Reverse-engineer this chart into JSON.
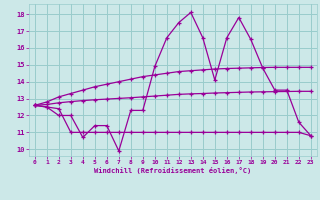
{
  "xlabel": "Windchill (Refroidissement éolien,°C)",
  "x": [
    0,
    1,
    2,
    3,
    4,
    5,
    6,
    7,
    8,
    9,
    10,
    11,
    12,
    13,
    14,
    15,
    16,
    17,
    18,
    19,
    20,
    21,
    22,
    23
  ],
  "y_main": [
    12.6,
    12.5,
    12.0,
    12.0,
    10.7,
    11.4,
    11.4,
    9.9,
    12.3,
    12.3,
    14.9,
    16.6,
    17.5,
    18.1,
    16.6,
    14.1,
    16.6,
    17.8,
    16.5,
    14.8,
    13.5,
    13.5,
    11.6,
    10.8
  ],
  "y_upper": [
    12.6,
    12.8,
    13.1,
    13.3,
    13.5,
    13.7,
    13.85,
    14.0,
    14.15,
    14.3,
    14.4,
    14.5,
    14.6,
    14.65,
    14.7,
    14.75,
    14.78,
    14.8,
    14.82,
    14.84,
    14.85,
    14.85,
    14.85,
    14.85
  ],
  "y_mid": [
    12.6,
    12.65,
    12.75,
    12.82,
    12.88,
    12.93,
    12.97,
    13.01,
    13.05,
    13.1,
    13.15,
    13.2,
    13.25,
    13.28,
    13.3,
    13.33,
    13.35,
    13.37,
    13.39,
    13.4,
    13.41,
    13.42,
    13.43,
    13.43
  ],
  "y_lower": [
    12.6,
    12.5,
    12.4,
    11.0,
    11.0,
    11.0,
    11.0,
    11.0,
    11.0,
    11.0,
    11.0,
    11.0,
    11.0,
    11.0,
    11.0,
    11.0,
    11.0,
    11.0,
    11.0,
    11.0,
    11.0,
    11.0,
    11.0,
    10.8
  ],
  "line_color": "#990099",
  "bg_color": "#cce8e8",
  "grid_color": "#99cccc",
  "ylim": [
    9.6,
    18.6
  ],
  "yticks": [
    10,
    11,
    12,
    13,
    14,
    15,
    16,
    17,
    18
  ],
  "xticks": [
    0,
    1,
    2,
    3,
    4,
    5,
    6,
    7,
    8,
    9,
    10,
    11,
    12,
    13,
    14,
    15,
    16,
    17,
    18,
    19,
    20,
    21,
    22,
    23
  ]
}
